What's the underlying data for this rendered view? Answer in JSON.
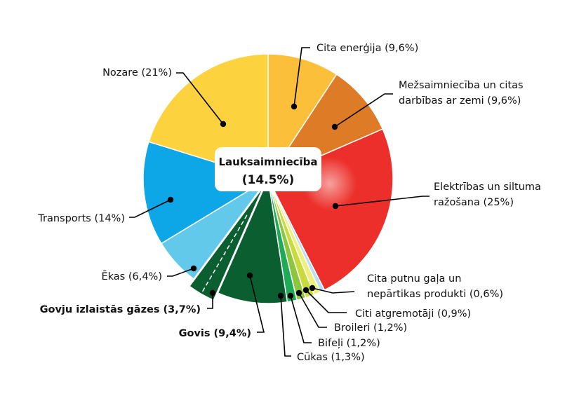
{
  "chart_data": {
    "type": "pie",
    "center_label": {
      "title": "Lauksaimniecība",
      "value": "(14.5%)"
    },
    "slices": [
      {
        "label": "Cita enerģija (9,6%)",
        "value": 9.6,
        "color": "#FBBF3A"
      },
      {
        "label": "Mežsaimniecība un citas darbības ar zemi (9,6%)",
        "label_lines": [
          "Mežsaimniecība un citas",
          "darbības ar zemi (9,6%)"
        ],
        "value": 9.6,
        "color": "#DE7B27"
      },
      {
        "label": "Elektrības un siltuma ražošana (25%)",
        "label_lines": [
          "Elektrības un siltuma",
          "ražošana (25%)"
        ],
        "value": 25,
        "color": "#EC2F2A"
      },
      {
        "label": "Cita putnu gaļa un nepārtikas produkti (0,6%)",
        "label_lines": [
          "Cita putnu gaļa un",
          "nepārtikas produkti (0,6%)"
        ],
        "value": 0.6,
        "color": "#B9E0F2"
      },
      {
        "label": "Citi atgremotāji (0,9%)",
        "value": 0.9,
        "color": "#EEF07A"
      },
      {
        "label": "Broileri (1,2%)",
        "value": 1.2,
        "color": "#C9DB3C"
      },
      {
        "label": "Bifeļi (1,2%)",
        "value": 1.2,
        "color": "#8CC63E"
      },
      {
        "label": "Cūkas (1,3%)",
        "value": 1.3,
        "color": "#1EAA57"
      },
      {
        "label": "Govis (9,4%)",
        "value": 9.4,
        "color": "#0A5E30",
        "bold": true
      },
      {
        "label": "Govju izlaistās gāzes (3,7%)",
        "value": 3.7,
        "color": "#0A5E30",
        "bold": true
      },
      {
        "label": "Ēkas (6,4%)",
        "value": 6.4,
        "color": "#62C9EA"
      },
      {
        "label": "Transports (14%)",
        "value": 14,
        "color": "#0DA6E6"
      },
      {
        "label": "Nozare (21%)",
        "value": 21,
        "color": "#FCD33F"
      }
    ]
  }
}
